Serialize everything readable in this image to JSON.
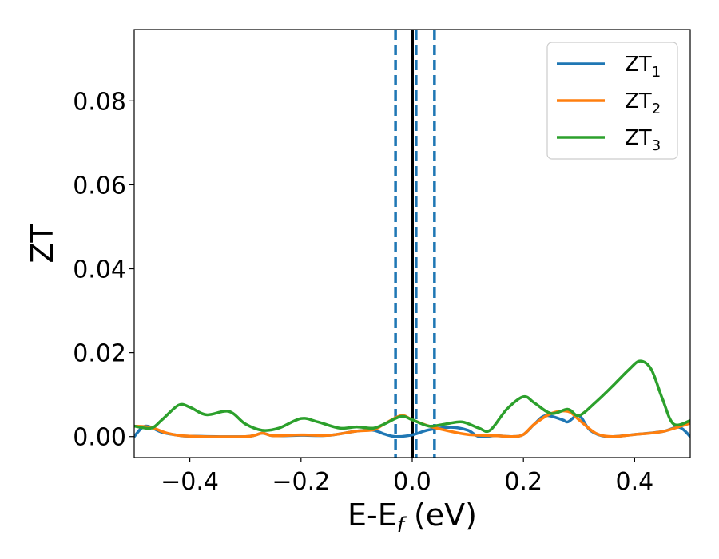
{
  "chart_data": {
    "type": "line",
    "title": "",
    "xlabel_main": "E-E",
    "xlabel_sub": "f",
    "xlabel_unit": " (eV)",
    "ylabel": "ZT",
    "xlim": [
      -0.5,
      0.5
    ],
    "ylim": [
      -0.005,
      0.097
    ],
    "x_ticks": [
      -0.4,
      -0.2,
      0.0,
      0.2,
      0.4
    ],
    "x_tick_labels": [
      "−0.4",
      "−0.2",
      "0.0",
      "0.2",
      "0.4"
    ],
    "y_ticks": [
      0.0,
      0.02,
      0.04,
      0.06,
      0.08
    ],
    "y_tick_labels": [
      "0.00",
      "0.02",
      "0.04",
      "0.06",
      "0.08"
    ],
    "grid": false,
    "legend_position": "top-right",
    "vlines": [
      {
        "x": 0.0,
        "style": "solid",
        "color": "#000000"
      },
      {
        "x": -0.03,
        "style": "dashed",
        "color": "#1f77b4"
      },
      {
        "x": 0.007,
        "style": "dashed",
        "color": "#1f77b4"
      },
      {
        "x": 0.04,
        "style": "dashed",
        "color": "#1f77b4"
      }
    ],
    "series": [
      {
        "name_main": "ZT",
        "name_sub": "1",
        "color": "#1f77b4",
        "points": [
          [
            -0.5,
            0.0
          ],
          [
            -0.48,
            0.0025
          ],
          [
            -0.45,
            0.001
          ],
          [
            -0.42,
            0.0003
          ],
          [
            -0.4,
            0.0001
          ],
          [
            -0.3,
            0.0
          ],
          [
            -0.27,
            0.0008
          ],
          [
            -0.25,
            0.0002
          ],
          [
            -0.2,
            0.0003
          ],
          [
            -0.15,
            0.0003
          ],
          [
            -0.1,
            0.0013
          ],
          [
            -0.07,
            0.0015
          ],
          [
            -0.05,
            0.0006
          ],
          [
            -0.03,
            0.0
          ],
          [
            0.0,
            0.0004
          ],
          [
            0.03,
            0.0016
          ],
          [
            0.07,
            0.0022
          ],
          [
            0.1,
            0.0015
          ],
          [
            0.12,
            0.0
          ],
          [
            0.15,
            0.0002
          ],
          [
            0.18,
            0.0
          ],
          [
            0.2,
            0.0005
          ],
          [
            0.22,
            0.003
          ],
          [
            0.24,
            0.005
          ],
          [
            0.27,
            0.004
          ],
          [
            0.28,
            0.0035
          ],
          [
            0.3,
            0.005
          ],
          [
            0.32,
            0.0015
          ],
          [
            0.35,
            0.0
          ],
          [
            0.4,
            0.0005
          ],
          [
            0.45,
            0.0012
          ],
          [
            0.48,
            0.0022
          ],
          [
            0.5,
            0.0
          ]
        ]
      },
      {
        "name_main": "ZT",
        "name_sub": "2",
        "color": "#ff7f0e",
        "points": [
          [
            -0.5,
            0.0025
          ],
          [
            -0.47,
            0.0022
          ],
          [
            -0.44,
            0.0008
          ],
          [
            -0.4,
            0.0001
          ],
          [
            -0.3,
            0.0
          ],
          [
            -0.27,
            0.0008
          ],
          [
            -0.25,
            0.0002
          ],
          [
            -0.2,
            0.0004
          ],
          [
            -0.15,
            0.0003
          ],
          [
            -0.1,
            0.0013
          ],
          [
            -0.07,
            0.0016
          ],
          [
            -0.05,
            0.003
          ],
          [
            -0.02,
            0.005
          ],
          [
            0.0,
            0.004
          ],
          [
            0.03,
            0.0025
          ],
          [
            0.06,
            0.0015
          ],
          [
            0.1,
            0.0005
          ],
          [
            0.15,
            0.0002
          ],
          [
            0.18,
            0.0
          ],
          [
            0.2,
            0.0005
          ],
          [
            0.22,
            0.003
          ],
          [
            0.25,
            0.0055
          ],
          [
            0.28,
            0.006
          ],
          [
            0.3,
            0.004
          ],
          [
            0.33,
            0.0008
          ],
          [
            0.36,
            0.0
          ],
          [
            0.4,
            0.0005
          ],
          [
            0.45,
            0.0012
          ],
          [
            0.5,
            0.0032
          ]
        ]
      },
      {
        "name_main": "ZT",
        "name_sub": "3",
        "color": "#2ca02c",
        "points": [
          [
            -0.5,
            0.0025
          ],
          [
            -0.47,
            0.002
          ],
          [
            -0.45,
            0.004
          ],
          [
            -0.42,
            0.0075
          ],
          [
            -0.4,
            0.007
          ],
          [
            -0.37,
            0.0052
          ],
          [
            -0.33,
            0.006
          ],
          [
            -0.3,
            0.003
          ],
          [
            -0.27,
            0.0015
          ],
          [
            -0.24,
            0.002
          ],
          [
            -0.2,
            0.0043
          ],
          [
            -0.17,
            0.0035
          ],
          [
            -0.13,
            0.002
          ],
          [
            -0.1,
            0.0023
          ],
          [
            -0.07,
            0.002
          ],
          [
            -0.05,
            0.003
          ],
          [
            -0.02,
            0.0048
          ],
          [
            0.0,
            0.004
          ],
          [
            0.03,
            0.0025
          ],
          [
            0.06,
            0.003
          ],
          [
            0.09,
            0.0035
          ],
          [
            0.12,
            0.002
          ],
          [
            0.14,
            0.0015
          ],
          [
            0.17,
            0.0065
          ],
          [
            0.2,
            0.0095
          ],
          [
            0.22,
            0.008
          ],
          [
            0.25,
            0.0055
          ],
          [
            0.28,
            0.0065
          ],
          [
            0.3,
            0.005
          ],
          [
            0.33,
            0.0082
          ],
          [
            0.36,
            0.012
          ],
          [
            0.39,
            0.016
          ],
          [
            0.41,
            0.018
          ],
          [
            0.43,
            0.016
          ],
          [
            0.45,
            0.009
          ],
          [
            0.47,
            0.003
          ],
          [
            0.5,
            0.0038
          ]
        ]
      }
    ]
  }
}
